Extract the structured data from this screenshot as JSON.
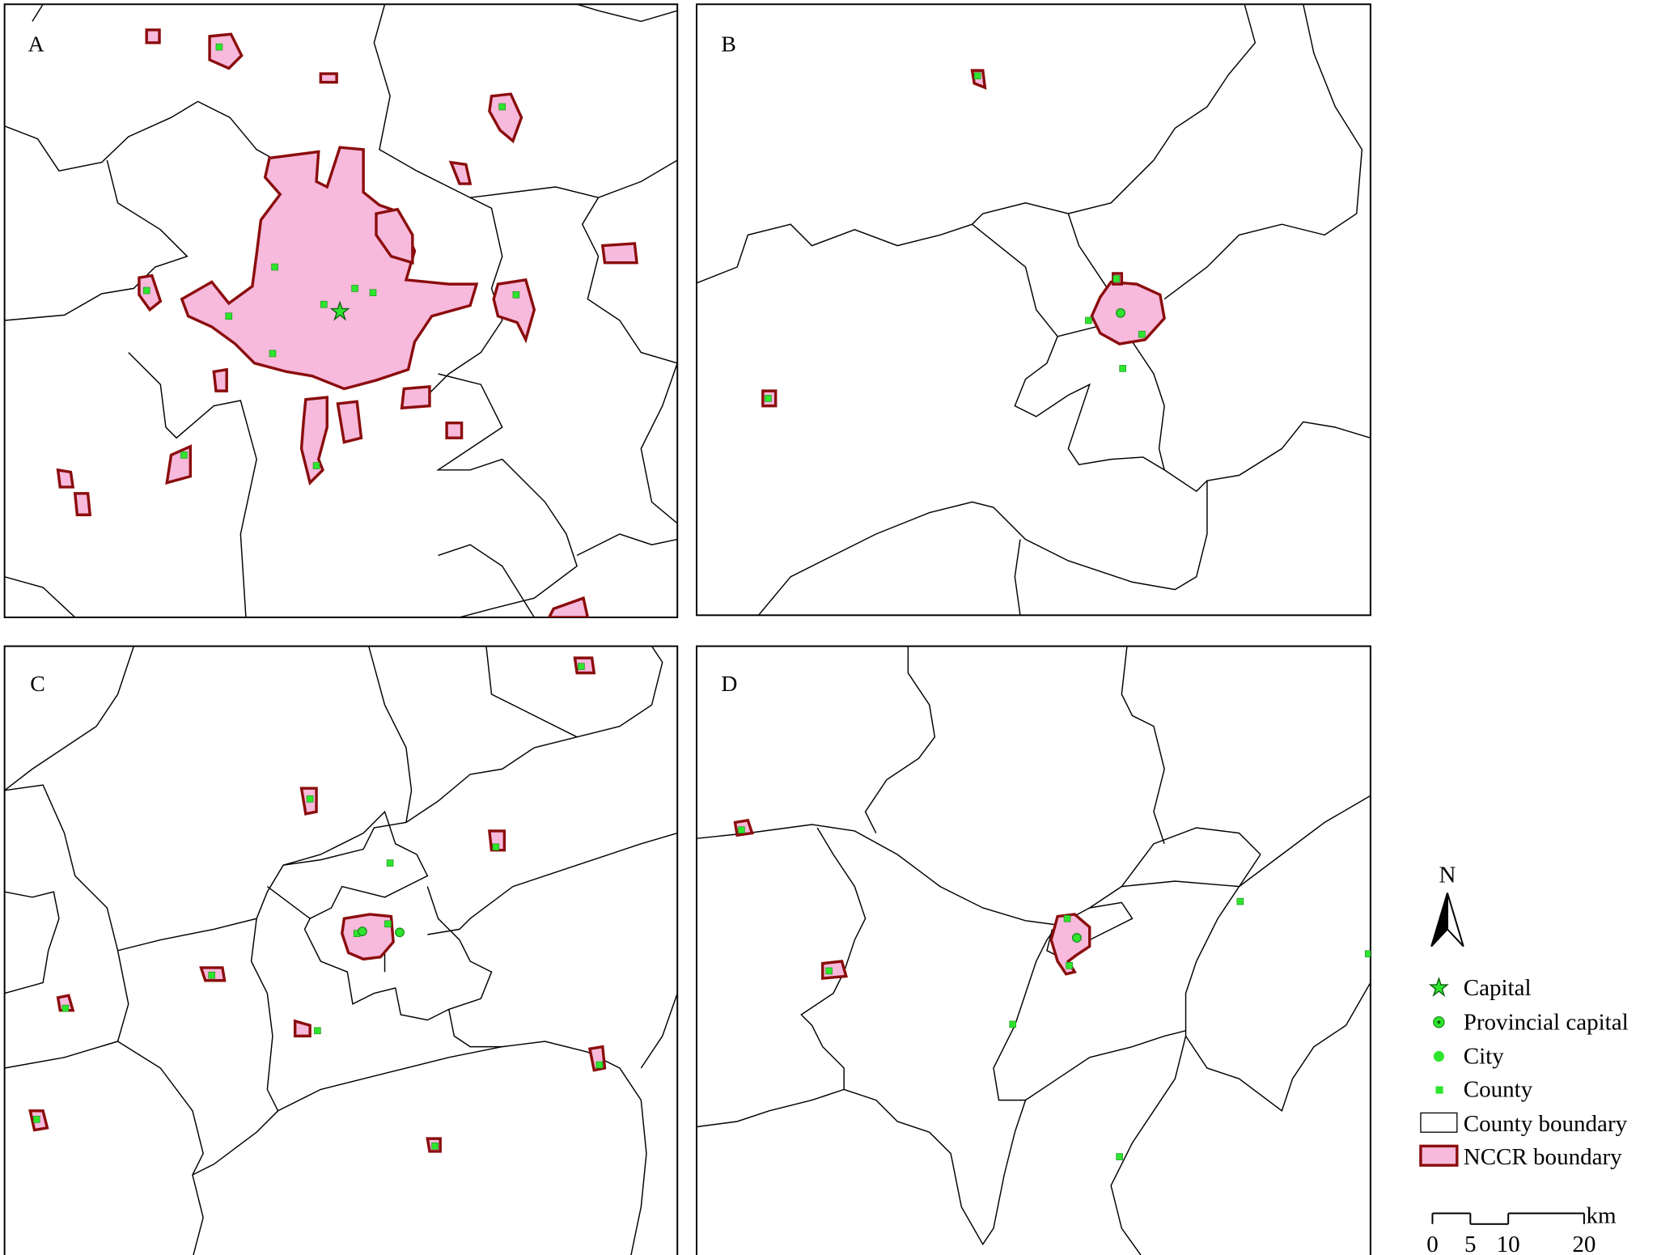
{
  "panels": [
    {
      "label": "A"
    },
    {
      "label": "B"
    },
    {
      "label": "C"
    },
    {
      "label": "D"
    }
  ],
  "legend": {
    "north": "N",
    "items": [
      {
        "label": "Capital"
      },
      {
        "label": "Provincial capital"
      },
      {
        "label": "City"
      },
      {
        "label": "County"
      },
      {
        "label": "County boundary"
      },
      {
        "label": "NCCR boundary"
      }
    ]
  },
  "scale_bar": {
    "ticks": [
      0,
      5,
      10,
      20
    ],
    "unit": "km"
  }
}
